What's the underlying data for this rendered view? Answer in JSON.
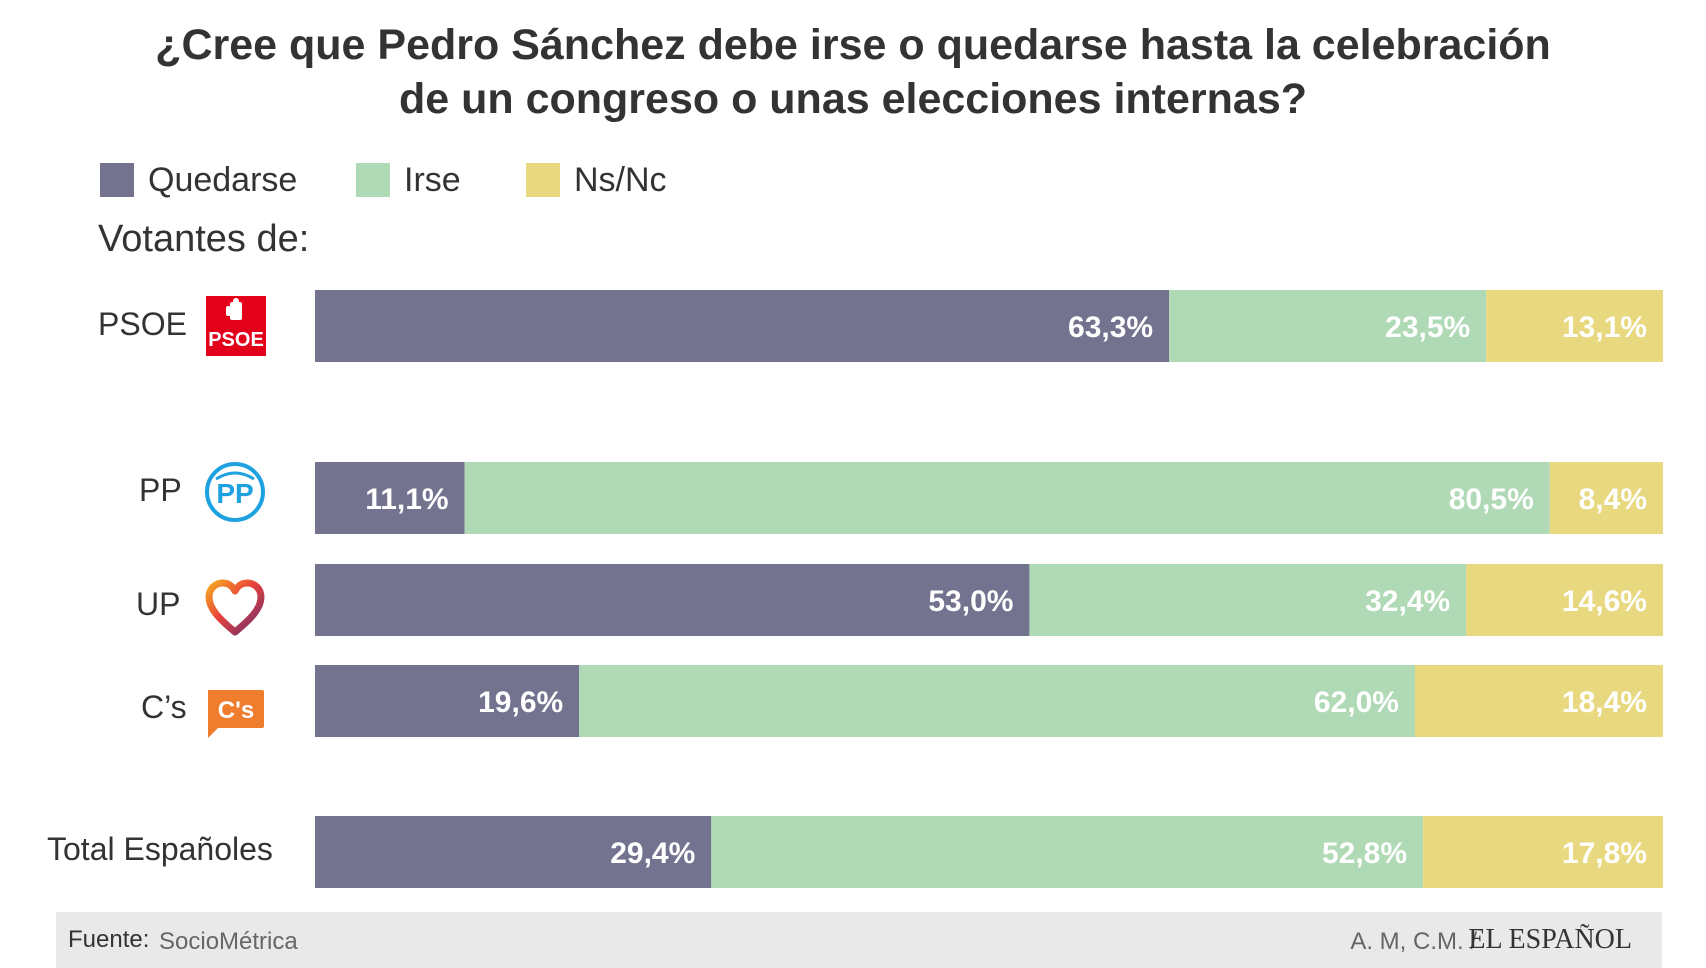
{
  "title": {
    "line1": "¿Cree que Pedro Sánchez debe irse o quedarse hasta la celebración",
    "line2": "de un congreso o unas elecciones internas?"
  },
  "legend": [
    {
      "label": "Quedarse",
      "color": "#737390"
    },
    {
      "label": "Irse",
      "color": "#b0d9b6"
    },
    {
      "label": "Ns/Nc",
      "color": "#e8d87f"
    }
  ],
  "section_label": "Votantes de:",
  "logos": {
    "psoe_text": "PSOE",
    "pp_text": "PP",
    "cs_text": "C's"
  },
  "colors": {
    "psoe_red": "#e3001b",
    "pp_blue": "#1ea1e1",
    "cs_orange": "#ef7d2e",
    "label_text": "#ffffff"
  },
  "chart_data": {
    "type": "bar",
    "orientation": "horizontal",
    "stacked": "100%",
    "categories": [
      "PSOE",
      "PP",
      "UP",
      "C’s",
      "Total Españoles"
    ],
    "series": [
      {
        "name": "Quedarse",
        "values": [
          63.3,
          11.1,
          53.0,
          19.6,
          29.4
        ],
        "labels": [
          "63,3%",
          "11,1%",
          "53,0%",
          "19,6%",
          "29,4%"
        ]
      },
      {
        "name": "Irse",
        "values": [
          23.5,
          80.5,
          32.4,
          62.0,
          52.8
        ],
        "labels": [
          "23,5%",
          "80,5%",
          "32,4%",
          "62,0%",
          "52,8%"
        ]
      },
      {
        "name": "Ns/Nc",
        "values": [
          13.1,
          8.4,
          14.6,
          18.4,
          17.8
        ],
        "labels": [
          "13,1%",
          "8,4%",
          "14,6%",
          "18,4%",
          "17,8%"
        ]
      }
    ],
    "xlim": [
      0,
      100
    ],
    "grid": false,
    "legend_position": "top-left"
  },
  "footer": {
    "source_label": "Fuente:",
    "source": "SocioMétrica",
    "credit": "A. M, C.M. /",
    "brand": "EL ESPAÑOL"
  }
}
